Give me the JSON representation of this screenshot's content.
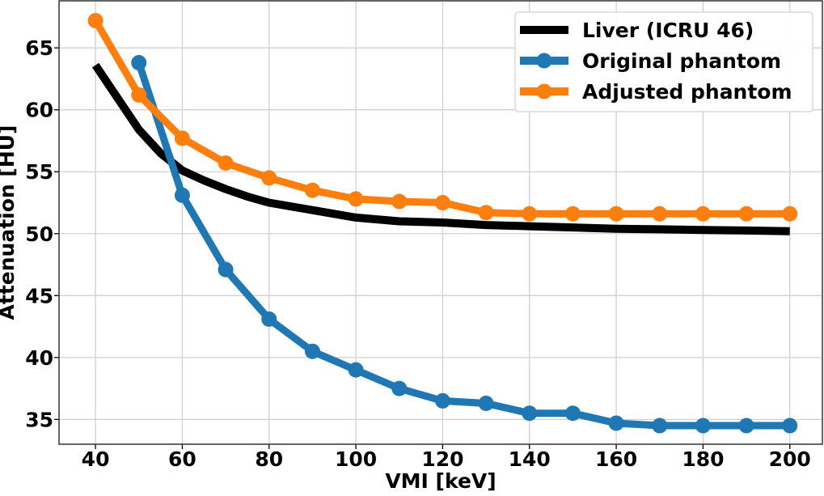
{
  "chart_data": {
    "type": "line",
    "title": "",
    "xlabel": "VMI [keV]",
    "ylabel": "Attenuation [HU]",
    "xlim": [
      31.6,
      207.5
    ],
    "ylim": [
      33.0,
      68.8
    ],
    "xticks": [
      40,
      60,
      80,
      100,
      120,
      140,
      160,
      180,
      200
    ],
    "yticks": [
      35,
      40,
      45,
      50,
      55,
      60,
      65
    ],
    "grid": true,
    "legend_position": "top-right",
    "series": [
      {
        "name": "Liver (ICRU 46)",
        "color": "#000000",
        "marker": false,
        "x": [
          40,
          45,
          50,
          55,
          60,
          65,
          70,
          75,
          80,
          90,
          100,
          110,
          120,
          130,
          140,
          150,
          160,
          170,
          180,
          190,
          200
        ],
        "y": [
          63.6,
          61.0,
          58.4,
          56.5,
          55.1,
          54.3,
          53.6,
          53.0,
          52.5,
          51.9,
          51.3,
          51.0,
          50.9,
          50.7,
          50.6,
          50.5,
          50.4,
          50.35,
          50.3,
          50.25,
          50.2
        ]
      },
      {
        "name": "Original phantom",
        "color": "#1f77b4",
        "marker": true,
        "x": [
          50,
          60,
          70,
          80,
          90,
          100,
          110,
          120,
          130,
          140,
          150,
          160,
          170,
          180,
          190,
          200
        ],
        "y": [
          63.8,
          53.1,
          47.1,
          43.1,
          40.5,
          39.0,
          37.5,
          36.5,
          36.3,
          35.5,
          35.5,
          34.7,
          34.5,
          34.5,
          34.5,
          34.5
        ]
      },
      {
        "name": "Adjusted phantom",
        "color": "#ff7f0e",
        "marker": true,
        "x": [
          40,
          50,
          60,
          70,
          80,
          90,
          100,
          110,
          120,
          130,
          140,
          150,
          160,
          170,
          180,
          190,
          200
        ],
        "y": [
          67.2,
          61.2,
          57.7,
          55.7,
          54.5,
          53.5,
          52.8,
          52.6,
          52.5,
          51.7,
          51.6,
          51.6,
          51.6,
          51.6,
          51.6,
          51.6,
          51.6
        ]
      }
    ]
  }
}
